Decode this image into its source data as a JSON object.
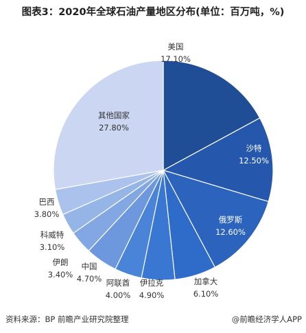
{
  "title": "图表3：2020年全球石油产量地区分布(单位：百万吨，%)",
  "footer": {
    "source": "资料来源：BP 前瞻产业研究院整理",
    "brand": "@前瞻经济学人APP"
  },
  "chart_data": {
    "type": "pie",
    "unit": "%",
    "slices": [
      {
        "name": "美国",
        "value": 17.1,
        "label": "17.10%",
        "color": "#1f4e96"
      },
      {
        "name": "沙特",
        "value": 12.5,
        "label": "12.50%",
        "color": "#2558ac"
      },
      {
        "name": "俄罗斯",
        "value": 12.6,
        "label": "12.60%",
        "color": "#2c63bd"
      },
      {
        "name": "加拿大",
        "value": 6.1,
        "label": "6.10%",
        "color": "#2f6bc8"
      },
      {
        "name": "伊拉克",
        "value": 4.9,
        "label": "4.90%",
        "color": "#3a77d2"
      },
      {
        "name": "阿联酋",
        "value": 4.0,
        "label": "4.00%",
        "color": "#4a84d8"
      },
      {
        "name": "中国",
        "value": 4.7,
        "label": "4.70%",
        "color": "#6d98dd"
      },
      {
        "name": "伊朗",
        "value": 3.4,
        "label": "3.40%",
        "color": "#82a7e2"
      },
      {
        "name": "科威特",
        "value": 3.1,
        "label": "3.10%",
        "color": "#96b5e7"
      },
      {
        "name": "巴西",
        "value": 3.8,
        "label": "3.80%",
        "color": "#abc3ec"
      },
      {
        "name": "其他国家",
        "value": 27.8,
        "label": "27.80%",
        "color": "#cbd7f2"
      }
    ]
  }
}
